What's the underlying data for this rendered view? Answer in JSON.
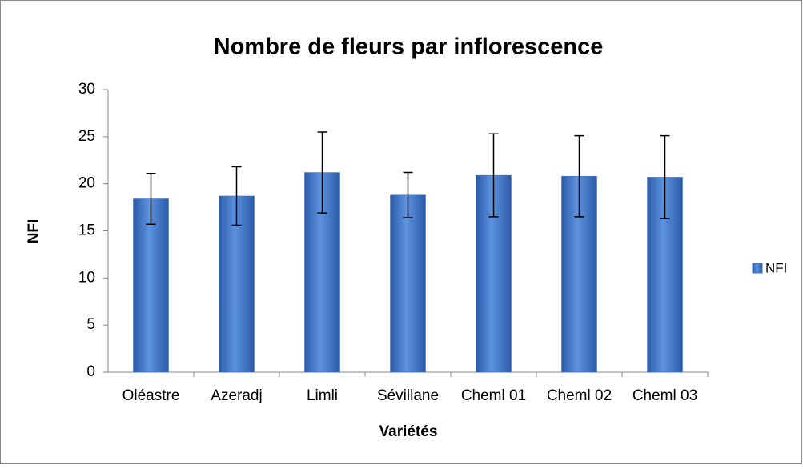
{
  "chart_data": {
    "type": "bar",
    "title": "Nombre de fleurs par inflorescence",
    "x_label": "Variétés",
    "y_label": "NFI",
    "categories": [
      "Oléastre",
      "Azeradj",
      "Limli",
      "Sévillane",
      "Cheml 01",
      "Cheml 02",
      "Cheml 03"
    ],
    "series": [
      {
        "name": "NFI",
        "color": "#3a6fc4",
        "values": [
          18.4,
          18.7,
          21.2,
          18.8,
          20.9,
          20.8,
          20.7
        ],
        "errors": [
          2.7,
          3.1,
          4.3,
          2.4,
          4.4,
          4.3,
          4.4
        ]
      }
    ],
    "ylim": [
      0,
      30
    ],
    "yticks": [
      0,
      5,
      10,
      15,
      20,
      25,
      30
    ],
    "grid": false,
    "legend": "right"
  }
}
